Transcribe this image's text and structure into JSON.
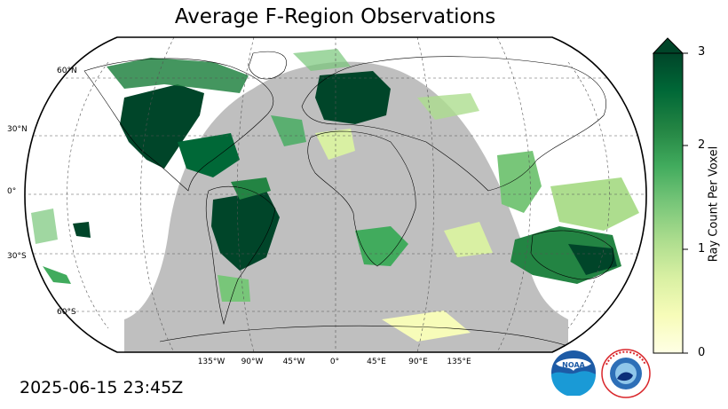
{
  "title": "Average F-Region Observations",
  "timestamp": "2025-06-15 23:45Z",
  "map": {
    "projection": "Robinson",
    "night_color": "#bfbfbf",
    "lat_labels": [
      "60°N",
      "30°N",
      "0°",
      "30°S",
      "60°S"
    ],
    "lon_labels": [
      "135°W",
      "90°W",
      "45°W",
      "0°",
      "45°E",
      "90°E",
      "135°E"
    ]
  },
  "colorbar": {
    "label": "Ray Count Per Voxel",
    "ticks": [
      "0",
      "1",
      "2",
      "3"
    ],
    "min": 0,
    "max": 3,
    "extend": "max",
    "colormap": [
      "#ffffe5",
      "#f7fcb9",
      "#d9f0a3",
      "#addd8e",
      "#78c679",
      "#41ab5d",
      "#238443",
      "#006837",
      "#004529"
    ]
  },
  "logos": {
    "noaa": {
      "text": "NOAA",
      "name": "noaa-logo"
    },
    "nws": {
      "text": "NATIONAL WEATHER SERVICE",
      "name": "nws-logo"
    }
  }
}
